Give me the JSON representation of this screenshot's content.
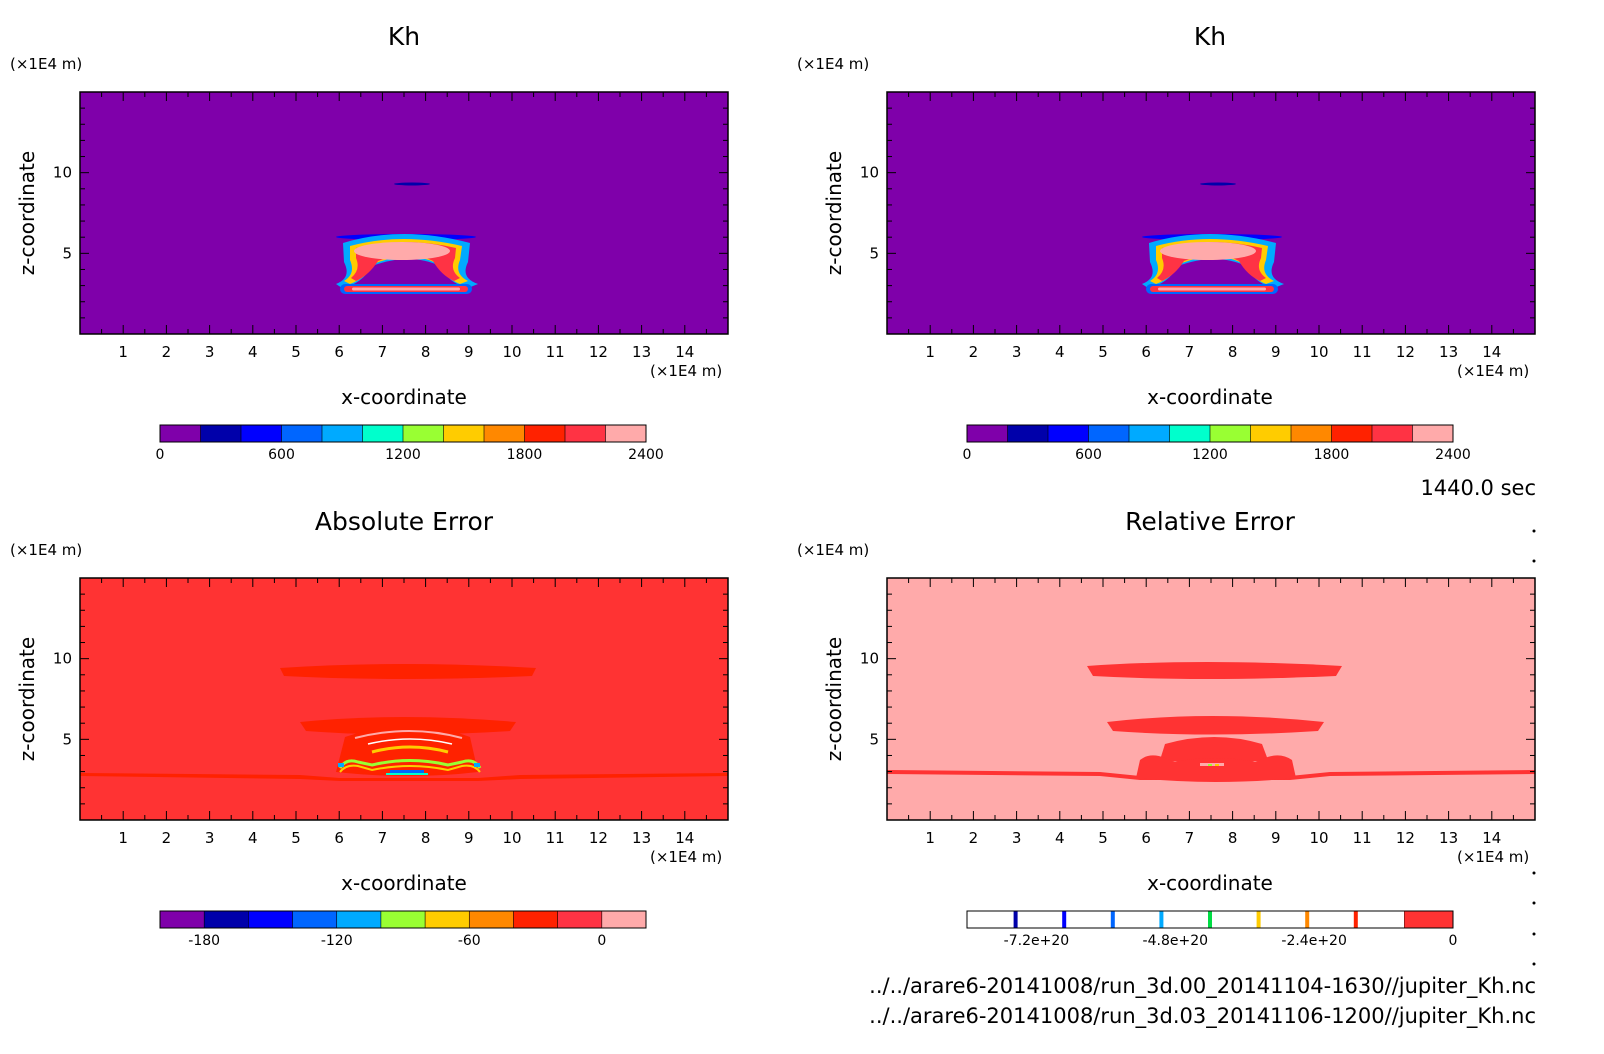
{
  "colors": {
    "purple": "#7f00aa",
    "red": "#ff3333",
    "pink": "#ffaaaa",
    "kh_scale": [
      "#7f00aa",
      "#0000aa",
      "#0000ff",
      "#0066ff",
      "#00aaff",
      "#00ffcc",
      "#99ff33",
      "#ffcc00",
      "#ff8800",
      "#ff2200",
      "#ff3344",
      "#ffaaaa"
    ],
    "abs_scale": [
      "#7f00aa",
      "#0000aa",
      "#0000ff",
      "#0066ff",
      "#00aaff",
      "#00ffcc",
      "#99ff33",
      "#ffcc00",
      "#ff8800",
      "#ff2200",
      "#ff3344",
      "#ffaaaa"
    ],
    "rel_marks": [
      "#0000aa",
      "#0000ff",
      "#0066ff",
      "#00aaff",
      "#00dd44",
      "#ffcc00",
      "#ff8800",
      "#ff2200"
    ]
  },
  "time_label": "1440.0 sec",
  "file_paths": [
    "../../arare6-20141008/run_3d.00_20141104-1630//jupiter_Kh.nc",
    "../../arare6-20141008/run_3d.03_20141106-1200//jupiter_Kh.nc"
  ],
  "chart_data": [
    {
      "type": "heatmap",
      "title": "Kh",
      "xlabel": "x-coordinate",
      "ylabel": "z-coordinate",
      "x_unit": "(×1E4 m)",
      "y_unit": "(×1E4 m)",
      "xlim": [
        0,
        15
      ],
      "ylim": [
        0,
        15
      ],
      "x_ticks": [
        1,
        2,
        3,
        4,
        5,
        6,
        7,
        8,
        9,
        10,
        11,
        12,
        13,
        14
      ],
      "y_ticks": [
        5,
        10
      ],
      "background_value": 0,
      "colorbar": {
        "min": 0,
        "max": 2400,
        "levels": 12,
        "labels": [
          "0",
          "600",
          "1200",
          "1800",
          "2400"
        ]
      }
    },
    {
      "type": "heatmap",
      "title": "Kh",
      "xlabel": "x-coordinate",
      "ylabel": "z-coordinate",
      "x_unit": "(×1E4 m)",
      "y_unit": "(×1E4 m)",
      "xlim": [
        0,
        15
      ],
      "ylim": [
        0,
        15
      ],
      "x_ticks": [
        1,
        2,
        3,
        4,
        5,
        6,
        7,
        8,
        9,
        10,
        11,
        12,
        13,
        14
      ],
      "y_ticks": [
        5,
        10
      ],
      "background_value": 0,
      "colorbar": {
        "min": 0,
        "max": 2400,
        "levels": 12,
        "labels": [
          "0",
          "600",
          "1200",
          "1800",
          "2400"
        ]
      }
    },
    {
      "type": "heatmap",
      "title": "Absolute Error",
      "xlabel": "x-coordinate",
      "ylabel": "z-coordinate",
      "x_unit": "(×1E4 m)",
      "y_unit": "(×1E4 m)",
      "xlim": [
        0,
        15
      ],
      "ylim": [
        0,
        15
      ],
      "x_ticks": [
        1,
        2,
        3,
        4,
        5,
        6,
        7,
        8,
        9,
        10,
        11,
        12,
        13,
        14
      ],
      "y_ticks": [
        5,
        10
      ],
      "background_value": 0,
      "colorbar": {
        "min": -200,
        "max": 20,
        "levels": 11,
        "labels": [
          "-180",
          "-120",
          "-60",
          "0"
        ]
      }
    },
    {
      "type": "heatmap",
      "title": "Relative Error",
      "xlabel": "x-coordinate",
      "ylabel": "z-coordinate",
      "x_unit": "(×1E4 m)",
      "y_unit": "(×1E4 m)",
      "xlim": [
        0,
        15
      ],
      "ylim": [
        0,
        15
      ],
      "x_ticks": [
        1,
        2,
        3,
        4,
        5,
        6,
        7,
        8,
        9,
        10,
        11,
        12,
        13,
        14
      ],
      "y_ticks": [
        5,
        10
      ],
      "background_value": 0,
      "colorbar": {
        "min": -8.4e+20,
        "max": 0,
        "labels": [
          "-7.2e+20",
          "-4.8e+20",
          "-2.4e+20",
          "0"
        ]
      }
    }
  ]
}
